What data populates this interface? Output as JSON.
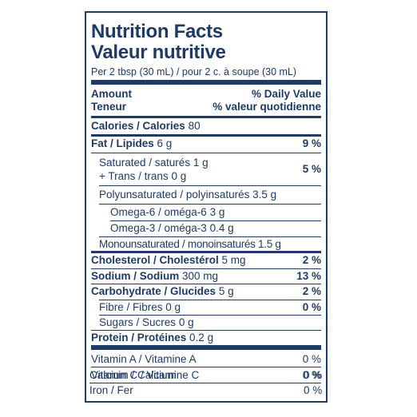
{
  "header": {
    "title_en": "Nutrition Facts",
    "title_fr": "Valeur nutritive",
    "serving": "Per 2 tbsp (30 mL) / pour 2 c. à soupe (30 mL)"
  },
  "columns": {
    "amount_en": "Amount",
    "amount_fr": "Teneur",
    "dv_en": "% Daily Value",
    "dv_fr": "% valeur quotidienne"
  },
  "calories": {
    "label": "Calories / Calories",
    "value": "80"
  },
  "fat": {
    "label": "Fat / Lipides",
    "amount": "6 g",
    "dv": "9 %"
  },
  "saturated": {
    "label": "Saturated / saturés",
    "amount": "1 g"
  },
  "trans": {
    "label": "+ Trans / trans",
    "amount": "0 g",
    "dv": "5 %"
  },
  "poly": {
    "label": "Polyunsaturated / polyinsaturés",
    "amount": "3.5 g"
  },
  "omega6": {
    "label": "Omega-6 / oméga-6",
    "amount": "3 g"
  },
  "omega3": {
    "label": "Omega-3 / oméga-3",
    "amount": "0.4 g"
  },
  "mono": {
    "label": "Monounsaturated / monoinsaturés",
    "amount": "1.5 g"
  },
  "cholesterol": {
    "label": "Cholesterol / Cholestérol",
    "amount": "5 mg",
    "dv": "2 %"
  },
  "sodium": {
    "label": "Sodium / Sodium",
    "amount": "300 mg",
    "dv": "13 %"
  },
  "carbohydrate": {
    "label": "Carbohydrate / Glucides",
    "amount": "5 g",
    "dv": "2 %"
  },
  "fibre": {
    "label": "Fibre / Fibres",
    "amount": "0 g",
    "dv": "0 %"
  },
  "sugars": {
    "label": "Sugars / Sucres",
    "amount": "0 g"
  },
  "protein": {
    "label": "Protein / Protéines",
    "amount": "0.2 g"
  },
  "vitamins": [
    {
      "label": "Vitamin A / Vitamine A",
      "dv": "0 %"
    },
    {
      "label": "Vitamin C / Vitamine C",
      "dv": "0 %"
    },
    {
      "label": "Calcium / Calcium",
      "dv": "0 %"
    },
    {
      "label": "Iron / Fer",
      "dv": "0 %"
    }
  ]
}
